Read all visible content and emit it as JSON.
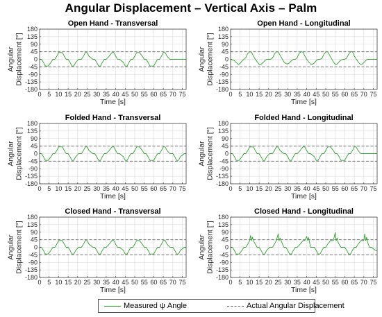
{
  "figure_title": "Angular Displacement – Vertical Axis – Palm",
  "colors": {
    "measured": "#2ca02c",
    "reference": "#6e6e6e",
    "grid": "#d9d9d9",
    "axes": "#262626"
  },
  "legend": {
    "measured": "Measured ψ Angle",
    "reference": "Actual Angular Displacement"
  },
  "chart_data": [
    {
      "type": "line",
      "title": "Open Hand - Transversal",
      "xlabel": "Time [s]",
      "ylabel": "Angular Displacement [°]",
      "xlim": [
        0,
        77
      ],
      "ylim": [
        -180,
        180
      ],
      "xticks": [
        0,
        5,
        10,
        15,
        20,
        25,
        30,
        35,
        40,
        45,
        50,
        55,
        60,
        65,
        70,
        75
      ],
      "yticks": [
        180,
        135,
        90,
        45,
        0,
        -45,
        -90,
        -135,
        -180
      ],
      "reference_lines": [
        45,
        -45
      ],
      "grid": true,
      "series": [
        {
          "name": "Measured ψ Angle",
          "x": [
            0,
            1,
            2,
            3,
            4.5,
            6,
            7,
            8,
            9,
            10,
            12,
            13,
            14,
            15,
            16,
            17,
            18,
            19,
            20.5,
            22,
            23,
            24,
            25,
            26,
            28,
            29,
            30,
            31,
            32,
            33,
            34,
            35,
            36.5,
            38,
            39,
            40,
            41,
            42,
            44,
            45,
            46,
            47,
            48,
            49,
            50,
            51,
            52.5,
            54,
            55,
            56,
            57,
            58,
            60,
            61,
            62,
            63,
            64,
            65,
            66,
            67,
            68.5,
            70,
            71,
            72,
            73,
            74,
            76,
            77
          ],
          "y": [
            0,
            0,
            -18,
            -40,
            -40,
            -18,
            0,
            0,
            18,
            40,
            40,
            18,
            0,
            0,
            -18,
            -40,
            -40,
            -18,
            0,
            0,
            18,
            40,
            40,
            18,
            0,
            0,
            -18,
            -40,
            -40,
            -18,
            0,
            0,
            18,
            40,
            40,
            18,
            0,
            0,
            -18,
            -40,
            -40,
            -18,
            0,
            0,
            18,
            40,
            40,
            18,
            0,
            0,
            -18,
            -40,
            -40,
            -18,
            0,
            0,
            18,
            40,
            40,
            18,
            0,
            0,
            0,
            0,
            0,
            0,
            0,
            0
          ]
        }
      ]
    },
    {
      "type": "line",
      "title": "Open Hand - Longitudinal",
      "xlabel": "Time [s]",
      "ylabel": "Angular Displacement [°]",
      "xlim": [
        0,
        77
      ],
      "ylim": [
        -180,
        180
      ],
      "xticks": [
        0,
        5,
        10,
        15,
        20,
        25,
        30,
        35,
        40,
        45,
        50,
        55,
        60,
        65,
        70,
        75
      ],
      "yticks": [
        180,
        135,
        90,
        45,
        0,
        -45,
        -90,
        -135,
        -180
      ],
      "reference_lines": [
        45,
        -45
      ],
      "grid": true,
      "series": [
        {
          "name": "Measured ψ Angle",
          "x": [
            0,
            2,
            3,
            4,
            5,
            6,
            7,
            8,
            9,
            10,
            11,
            12,
            13,
            14,
            15,
            16,
            17,
            18,
            19,
            20,
            21,
            22,
            23,
            24,
            25,
            26,
            27,
            28,
            29,
            30,
            31,
            32,
            33,
            34,
            35,
            36,
            37,
            38,
            39,
            40,
            41,
            42,
            43,
            44,
            45,
            46,
            47,
            48,
            49,
            50,
            51,
            52,
            53,
            54,
            55,
            56,
            57,
            58,
            59,
            60,
            61,
            62,
            63,
            64,
            65,
            66,
            67,
            68,
            69,
            70,
            71,
            72,
            73,
            74,
            75,
            76,
            77
          ],
          "y": [
            0,
            -8,
            -20,
            -30,
            -25,
            -10,
            0,
            10,
            35,
            45,
            42,
            20,
            0,
            -15,
            -30,
            -30,
            -20,
            -8,
            0,
            0,
            0,
            8,
            30,
            45,
            44,
            25,
            5,
            -15,
            -25,
            -28,
            -20,
            -8,
            0,
            0,
            10,
            35,
            45,
            43,
            20,
            0,
            -15,
            -28,
            -30,
            -22,
            -8,
            0,
            0,
            5,
            30,
            44,
            45,
            25,
            5,
            -15,
            -30,
            -28,
            -15,
            -5,
            0,
            0,
            8,
            30,
            44,
            46,
            20,
            2,
            -15,
            -28,
            -30,
            -20,
            -8,
            0,
            0,
            0,
            0,
            0,
            0
          ]
        }
      ]
    },
    {
      "type": "line",
      "title": "Folded Hand - Transversal",
      "xlabel": "Time [s]",
      "ylabel": "Angular Displacement [°]",
      "xlim": [
        0,
        77
      ],
      "ylim": [
        -180,
        180
      ],
      "xticks": [
        0,
        5,
        10,
        15,
        20,
        25,
        30,
        35,
        40,
        45,
        50,
        55,
        60,
        65,
        70,
        75
      ],
      "yticks": [
        180,
        135,
        90,
        45,
        0,
        -45,
        -90,
        -135,
        -180
      ],
      "reference_lines": [
        45,
        -45
      ],
      "grid": true,
      "series": [
        {
          "name": "Measured ψ Angle",
          "x": [
            0,
            1,
            2,
            3,
            4.5,
            6,
            7,
            8,
            9,
            10,
            12,
            13,
            14,
            15,
            16,
            17,
            18,
            19,
            20.5,
            22,
            23,
            24,
            25,
            26,
            28,
            29,
            30,
            31,
            32,
            33,
            34,
            35,
            36.5,
            38,
            39,
            40,
            41,
            42,
            44,
            45,
            46,
            47,
            48,
            49,
            50,
            51,
            52.5,
            54,
            55,
            56,
            57,
            58,
            60,
            61,
            62,
            63,
            64,
            65,
            66,
            67,
            68.5,
            70,
            71,
            72,
            73,
            74,
            76,
            77
          ],
          "y": [
            0,
            0,
            -18,
            -40,
            -40,
            -18,
            0,
            0,
            18,
            40,
            40,
            18,
            0,
            0,
            -18,
            -40,
            -40,
            -18,
            0,
            0,
            18,
            40,
            40,
            18,
            0,
            0,
            -18,
            -40,
            -40,
            -18,
            0,
            0,
            18,
            40,
            40,
            18,
            0,
            0,
            -18,
            -40,
            -40,
            -18,
            0,
            0,
            18,
            40,
            40,
            18,
            0,
            0,
            -18,
            -40,
            -40,
            -18,
            0,
            0,
            18,
            40,
            40,
            18,
            0,
            0,
            -18,
            -40,
            -40,
            -18,
            0,
            0
          ]
        }
      ]
    },
    {
      "type": "line",
      "title": "Folded Hand - Longitudinal",
      "xlabel": "Time [s]",
      "ylabel": "Angular Displacement [°]",
      "xlim": [
        0,
        77
      ],
      "ylim": [
        -180,
        180
      ],
      "xticks": [
        0,
        5,
        10,
        15,
        20,
        25,
        30,
        35,
        40,
        45,
        50,
        55,
        60,
        65,
        70,
        75
      ],
      "yticks": [
        180,
        135,
        90,
        45,
        0,
        -45,
        -90,
        -135,
        -180
      ],
      "reference_lines": [
        45,
        -45
      ],
      "grid": true,
      "series": [
        {
          "name": "Measured ψ Angle",
          "x": [
            0,
            1,
            2,
            3,
            4.5,
            6,
            7,
            8,
            9,
            10,
            12,
            13,
            14,
            15,
            16,
            17,
            18,
            19,
            20.5,
            22,
            23,
            24,
            25,
            26,
            28,
            29,
            30,
            31,
            32,
            33,
            34,
            35,
            36.5,
            38,
            39,
            40,
            41,
            42,
            44,
            45,
            46,
            47,
            48,
            49,
            50,
            51,
            52.5,
            54,
            55,
            56,
            57,
            58,
            60,
            61,
            62,
            63,
            64,
            65,
            66,
            67,
            68.5,
            70,
            71,
            72,
            73,
            74,
            76,
            77
          ],
          "y": [
            0,
            0,
            -18,
            -40,
            -40,
            -18,
            0,
            0,
            18,
            40,
            40,
            18,
            0,
            0,
            -18,
            -40,
            -40,
            -18,
            0,
            0,
            18,
            40,
            40,
            18,
            0,
            0,
            -18,
            -40,
            -40,
            -18,
            0,
            0,
            18,
            40,
            40,
            18,
            0,
            0,
            -18,
            -40,
            -40,
            -18,
            0,
            0,
            18,
            40,
            40,
            18,
            0,
            0,
            -18,
            -40,
            -40,
            -18,
            0,
            0,
            18,
            40,
            40,
            18,
            0,
            0,
            0,
            0,
            0,
            0,
            0,
            0
          ]
        }
      ]
    },
    {
      "type": "line",
      "title": "Closed Hand - Transversal",
      "xlabel": "Time [s]",
      "ylabel": "Angular Displacement [°]",
      "xlim": [
        0,
        77
      ],
      "ylim": [
        -180,
        180
      ],
      "xticks": [
        0,
        5,
        10,
        15,
        20,
        25,
        30,
        35,
        40,
        45,
        50,
        55,
        60,
        65,
        70,
        75
      ],
      "yticks": [
        180,
        135,
        90,
        45,
        0,
        -45,
        -90,
        -135,
        -180
      ],
      "reference_lines": [
        45,
        -45
      ],
      "grid": true,
      "series": [
        {
          "name": "Measured ψ Angle",
          "x": [
            0,
            1,
            2,
            3,
            4.5,
            6,
            7,
            8,
            9,
            10,
            12,
            13,
            14,
            15,
            16,
            17,
            18,
            19,
            20.5,
            22,
            23,
            24,
            25,
            26,
            28,
            29,
            30,
            31,
            32,
            33,
            34,
            35,
            36.5,
            38,
            39,
            40,
            41,
            42,
            44,
            45,
            46,
            47,
            48,
            49,
            50,
            51,
            52.5,
            54,
            55,
            56,
            57,
            58,
            60,
            61,
            62,
            63,
            64,
            65,
            66,
            67,
            68.5,
            70,
            71,
            72,
            73,
            74,
            76,
            77
          ],
          "y": [
            0,
            0,
            -18,
            -40,
            -40,
            -18,
            0,
            0,
            18,
            40,
            40,
            18,
            0,
            0,
            -18,
            -40,
            -40,
            -18,
            0,
            0,
            18,
            40,
            40,
            18,
            0,
            0,
            -18,
            -40,
            -40,
            -18,
            0,
            0,
            18,
            40,
            40,
            18,
            0,
            0,
            -18,
            -40,
            -40,
            -18,
            0,
            0,
            18,
            40,
            40,
            18,
            0,
            0,
            -18,
            -40,
            -40,
            -18,
            0,
            0,
            18,
            40,
            40,
            18,
            0,
            0,
            -18,
            -40,
            -40,
            -18,
            0,
            0
          ]
        }
      ]
    },
    {
      "type": "line",
      "title": "Closed Hand - Longitudinal",
      "xlabel": "Time [s]",
      "ylabel": "Angular Displacement [°]",
      "xlim": [
        0,
        77
      ],
      "ylim": [
        -180,
        180
      ],
      "xticks": [
        0,
        5,
        10,
        15,
        20,
        25,
        30,
        35,
        40,
        45,
        50,
        55,
        60,
        65,
        70,
        75
      ],
      "yticks": [
        180,
        135,
        90,
        45,
        0,
        -45,
        -90,
        -135,
        -180
      ],
      "reference_lines": [
        45,
        -45
      ],
      "grid": true,
      "series": [
        {
          "name": "Measured ψ Angle",
          "x": [
            0,
            1,
            2,
            3,
            4.5,
            6,
            7,
            8,
            9,
            10,
            10.5,
            11,
            11.5,
            12,
            13,
            14,
            15,
            16,
            17,
            18,
            19,
            20.5,
            22,
            23,
            24,
            25,
            25.5,
            26,
            26.5,
            28,
            29,
            30,
            31,
            32,
            33,
            34,
            35,
            36.5,
            38,
            39,
            40,
            40.5,
            41,
            41.5,
            42,
            44,
            45,
            46,
            47,
            48,
            49,
            50,
            51,
            52.5,
            54,
            55,
            55.5,
            56,
            56.5,
            57,
            58,
            60,
            61,
            62,
            63,
            64,
            65,
            66,
            67,
            68.5,
            70,
            70.5,
            71,
            71.5,
            72,
            73,
            74,
            76,
            77
          ],
          "y": [
            0,
            0,
            -18,
            -40,
            -40,
            -18,
            0,
            0,
            18,
            40,
            70,
            40,
            60,
            40,
            18,
            0,
            0,
            -18,
            -40,
            -40,
            -18,
            0,
            0,
            18,
            40,
            80,
            40,
            55,
            40,
            0,
            0,
            -18,
            -40,
            -40,
            -18,
            0,
            0,
            18,
            40,
            40,
            65,
            40,
            58,
            30,
            0,
            0,
            -18,
            -40,
            -40,
            -18,
            0,
            0,
            18,
            40,
            40,
            88,
            40,
            55,
            30,
            18,
            0,
            0,
            -18,
            -40,
            -40,
            -18,
            0,
            0,
            18,
            40,
            40,
            80,
            40,
            60,
            30,
            0,
            0,
            -18,
            -20
          ]
        }
      ]
    }
  ]
}
